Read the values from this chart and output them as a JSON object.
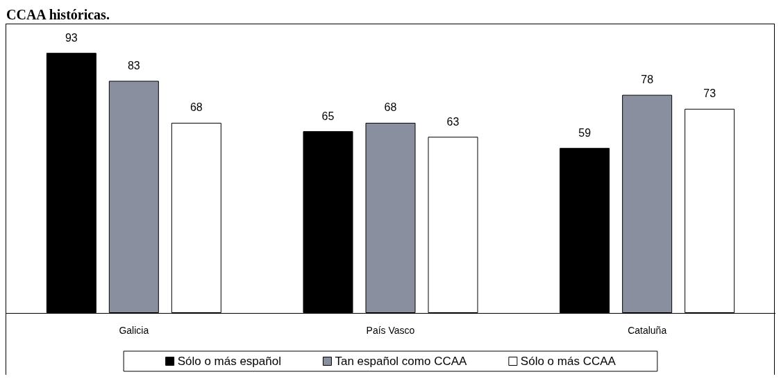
{
  "chart_data": {
    "type": "bar",
    "title": "CCAA históricas.",
    "categories": [
      "Galicia",
      "País Vasco",
      "Cataluña"
    ],
    "series": [
      {
        "name": "Sólo o más español",
        "color": "#000000",
        "values": [
          93,
          65,
          59
        ]
      },
      {
        "name": "Tan español como CCAA",
        "color": "#8a8fa0",
        "values": [
          83,
          68,
          78
        ]
      },
      {
        "name": "Sólo o más CCAA",
        "color": "#ffffff",
        "values": [
          68,
          63,
          73
        ]
      }
    ],
    "data_labels": true,
    "legend": "bottom",
    "grid": false
  }
}
